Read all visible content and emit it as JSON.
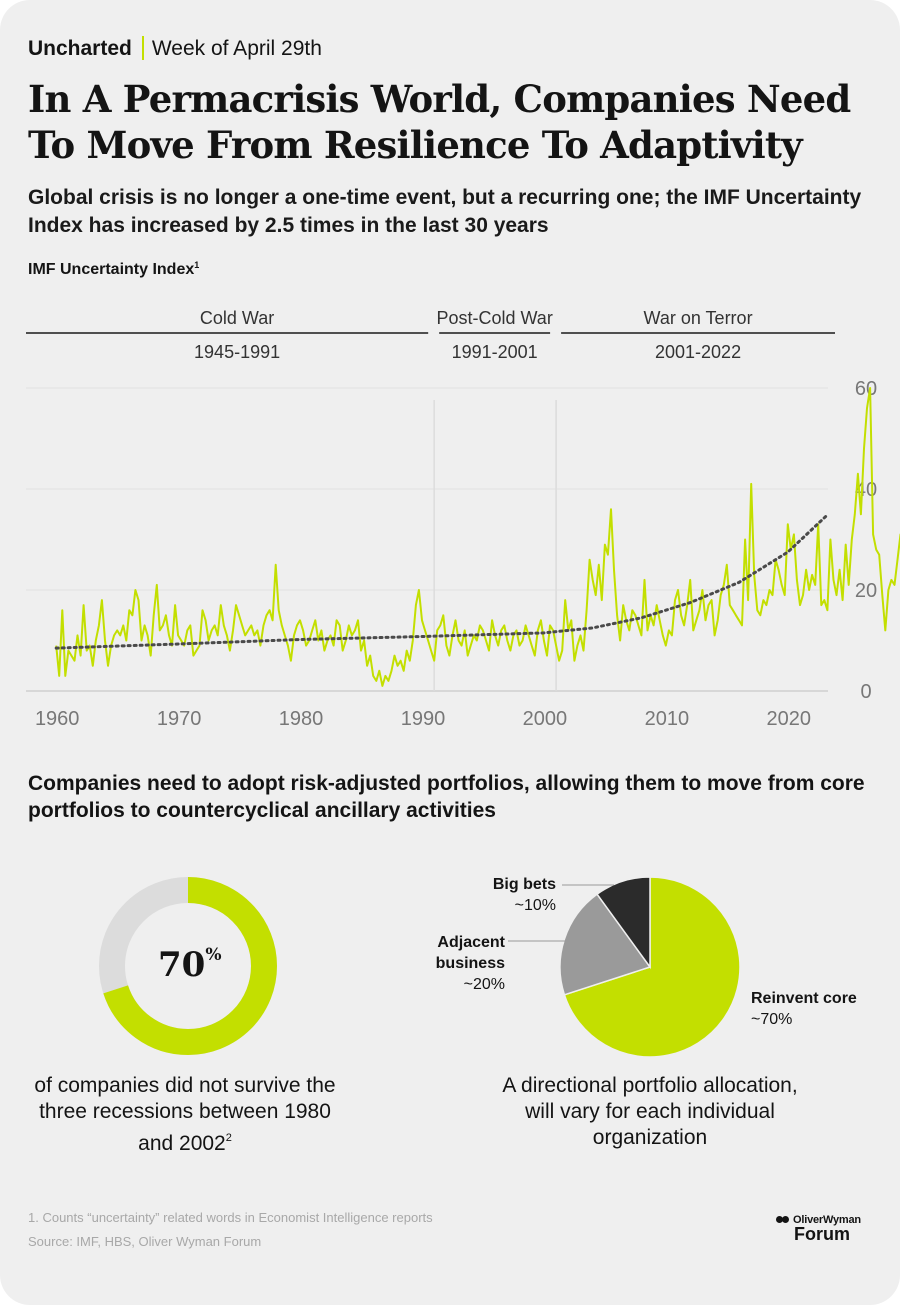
{
  "header": {
    "brand": "Uncharted",
    "week": "Week of April 29th",
    "title": "In A Permacrisis World, Companies Need To Move From Resilience To Adaptivity",
    "subtitle": "Global crisis is no longer a one-time event, but a recurring one; the IMF Uncertainty Index has increased by 2.5 times in the last 30 years"
  },
  "colors": {
    "accent": "#c3df00",
    "dark": "#2b2b2b",
    "grey": "#9a9a9a",
    "light_grey": "#dcdcdc",
    "background": "#efefef"
  },
  "chart_data": {
    "type": "line",
    "title": "IMF Uncertainty Index",
    "title_footnote": "1",
    "x_ticks": [
      1960,
      1970,
      1980,
      1990,
      2000,
      2010,
      2020
    ],
    "y_ticks": [
      0,
      20,
      40,
      60
    ],
    "xlim": [
      1959,
      2023.3
    ],
    "ylim": [
      0,
      60
    ],
    "eras": [
      {
        "name": "Cold War",
        "range": "1945-1991",
        "start": 1959,
        "end": 1991
      },
      {
        "name": "Post-Cold War",
        "range": "1991-2001",
        "start": 1991,
        "end": 2001
      },
      {
        "name": "War on Terror",
        "range": "2001-2022",
        "start": 2001,
        "end": 2023.3
      }
    ],
    "era_dividers": [
      1991,
      2001
    ],
    "series": [
      {
        "name": "IMF Uncertainty Index (quarterly)",
        "x_start": 1960,
        "x_step": 0.25,
        "values": [
          9,
          3,
          16,
          3,
          8,
          7,
          6,
          11,
          7,
          17,
          8,
          9,
          5,
          10,
          13,
          18,
          10,
          5,
          9,
          11,
          12,
          11,
          13,
          10,
          16,
          15,
          20,
          18,
          10,
          13,
          11,
          7,
          15,
          21,
          12,
          13,
          15,
          11,
          9,
          17,
          11,
          10,
          9,
          12,
          13,
          7,
          8,
          9,
          16,
          14,
          10,
          12,
          13,
          11,
          17,
          13,
          11,
          8,
          12,
          17,
          15,
          13,
          11,
          12,
          13,
          11,
          12,
          9,
          13,
          15,
          16,
          14,
          25,
          16,
          13,
          11,
          9,
          6,
          11,
          13,
          14,
          12,
          9,
          10,
          12,
          14,
          10,
          12,
          8,
          10,
          11,
          9,
          14,
          13,
          8,
          10,
          13,
          11,
          12,
          14,
          8,
          10,
          5,
          7,
          3,
          2,
          4,
          1,
          3,
          2,
          4,
          7,
          5,
          6,
          4,
          8,
          6,
          10,
          17,
          20,
          14,
          12,
          10,
          8,
          6,
          12,
          13,
          15,
          9,
          7,
          11,
          14,
          10,
          9,
          12,
          7,
          9,
          11,
          10,
          13,
          12,
          10,
          8,
          14,
          11,
          9,
          12,
          13,
          10,
          8,
          11,
          12,
          9,
          10,
          13,
          11,
          9,
          7,
          12,
          14,
          10,
          7,
          13,
          12,
          9,
          6,
          8,
          18,
          12,
          14,
          6,
          9,
          11,
          8,
          16,
          26,
          22,
          19,
          25,
          18,
          29,
          27,
          36,
          24,
          15,
          10,
          17,
          14,
          12,
          16,
          15,
          13,
          11,
          22,
          12,
          15,
          13,
          17,
          14,
          11,
          9,
          12,
          11,
          18,
          20,
          15,
          13,
          17,
          22,
          12,
          14,
          16,
          20,
          14,
          17,
          18,
          11,
          14,
          19,
          21,
          25,
          17,
          16,
          15,
          14,
          13,
          30,
          18,
          41,
          23,
          16,
          15,
          18,
          17,
          20,
          19,
          26,
          24,
          21,
          19,
          33,
          28,
          31,
          22,
          17,
          19,
          24,
          20,
          23,
          21,
          33,
          17,
          18,
          16,
          30,
          22,
          19,
          24,
          18,
          29,
          21,
          30,
          35,
          43,
          35,
          48,
          56,
          60,
          31,
          28,
          27,
          19,
          12,
          20,
          22,
          21,
          26,
          31,
          28,
          24,
          27,
          26
        ]
      },
      {
        "name": "Trend",
        "style": "dotted",
        "x": [
          1960,
          1970,
          1980,
          1990,
          2000,
          2004,
          2008,
          2012,
          2016,
          2020,
          2023.3
        ],
        "values": [
          8.5,
          9.3,
          10.2,
          10.8,
          11.5,
          12.5,
          14.5,
          17.5,
          21.5,
          27.5,
          35
        ]
      }
    ]
  },
  "section2": {
    "title": "Companies need to adopt risk-adjusted portfolios, allowing them to move from core portfolios to countercyclical ancillary activities"
  },
  "donut": {
    "value": 70,
    "value_text": "70",
    "percent_sign": "%",
    "caption": "of companies did not survive the three recessions between 1980 and 2002",
    "caption_footnote": "2"
  },
  "pie": {
    "slices": [
      {
        "name": "Reinvent core",
        "approx": "~70%",
        "value": 70
      },
      {
        "name": "Adjacent business",
        "approx": "~20%",
        "value": 20
      },
      {
        "name": "Big bets",
        "approx": "~10%",
        "value": 10
      }
    ],
    "caption": "A directional portfolio allocation, will vary for each individual organization"
  },
  "footer": {
    "note": "1. Counts “uncertainty” related words in Economist Intelligence reports",
    "source": "Source: IMF, HBS, Oliver Wyman Forum",
    "logo_top": "OliverWyman",
    "logo_bottom": "Forum"
  }
}
